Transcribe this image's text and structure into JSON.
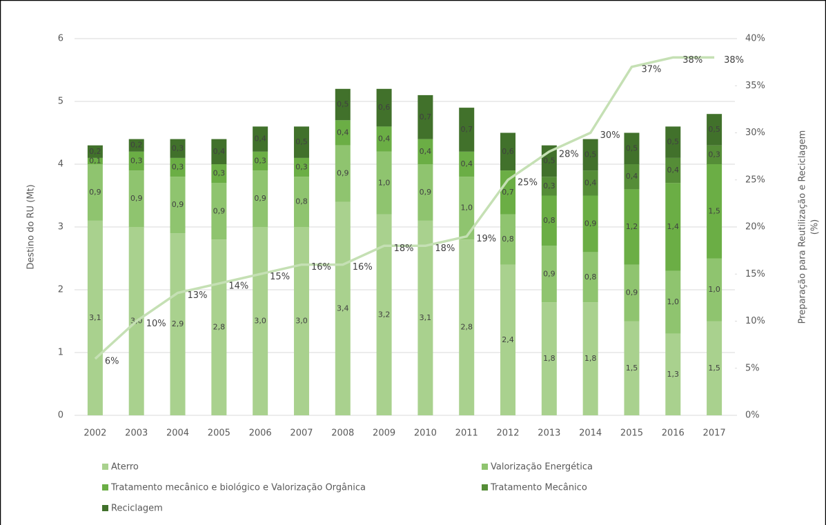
{
  "chart_data": {
    "type": "bar",
    "categories": [
      "2002",
      "2003",
      "2004",
      "2005",
      "2006",
      "2007",
      "2008",
      "2009",
      "2010",
      "2011",
      "2012",
      "2013",
      "2014",
      "2015",
      "2016",
      "2017"
    ],
    "series": [
      {
        "name": "Aterro",
        "color": "#a9d18e",
        "values": [
          3.1,
          3.0,
          2.9,
          2.8,
          3.0,
          3.0,
          3.4,
          3.2,
          3.1,
          2.8,
          2.4,
          1.8,
          1.8,
          1.5,
          1.3,
          1.5
        ],
        "value_labels": [
          "3,1",
          "3,0",
          "2,9",
          "2,8",
          "3,0",
          "3,0",
          "3,4",
          "3,2",
          "3,1",
          "2,8",
          "2,4",
          "1,8",
          "1,8",
          "1,5",
          "1,3",
          "1,5"
        ]
      },
      {
        "name": "Valorização Energética",
        "color": "#8fc46f",
        "values": [
          0.9,
          0.9,
          0.9,
          0.9,
          0.9,
          0.8,
          0.9,
          1.0,
          0.9,
          1.0,
          0.8,
          0.9,
          0.8,
          0.9,
          1.0,
          1.0
        ],
        "value_labels": [
          "0,9",
          "0,9",
          "0,9",
          "0,9",
          "0,9",
          "0,8",
          "0,9",
          "1,0",
          "0,9",
          "1,0",
          "0,8",
          "0,9",
          "0,8",
          "0,9",
          "1,0",
          "1,0"
        ]
      },
      {
        "name": "Tratamento mecânico e biológico e Valorização Orgânica",
        "color": "#6bae45",
        "values": [
          0.1,
          0.3,
          0.3,
          0.3,
          0.3,
          0.3,
          0.4,
          0.4,
          0.4,
          0.4,
          0.7,
          0.8,
          0.9,
          1.2,
          1.4,
          1.5
        ],
        "value_labels": [
          "0,1",
          "0,3",
          "0,3",
          "0,3",
          "0,3",
          "0,3",
          "0,4",
          "0,4",
          "0,4",
          "0,4",
          "0,7",
          "0,8",
          "0,9",
          "1,2",
          "1,4",
          "1,5"
        ]
      },
      {
        "name": "Tratamento Mecânico",
        "color": "#558d37",
        "values": [
          null,
          null,
          null,
          null,
          null,
          null,
          null,
          null,
          null,
          null,
          null,
          0.3,
          0.4,
          0.4,
          0.4,
          0.3
        ],
        "value_labels": [
          null,
          null,
          null,
          null,
          null,
          null,
          null,
          null,
          null,
          null,
          null,
          "0,3",
          "0,4",
          "0,4",
          "0,4",
          "0,3"
        ]
      },
      {
        "name": "Reciclagem",
        "color": "#41712b",
        "values": [
          0.2,
          0.2,
          0.3,
          0.4,
          0.4,
          0.5,
          0.5,
          0.6,
          0.7,
          0.7,
          0.6,
          0.5,
          0.5,
          0.5,
          0.5,
          0.5
        ],
        "value_labels": [
          "0,2",
          "0,2",
          "0,3",
          "0,4",
          "0,4",
          "0,5",
          "0,5",
          "0,6",
          "0,7",
          "0,7",
          "0,6",
          "0,5",
          "0,5",
          "0,5",
          "0,5",
          "0,5"
        ]
      }
    ],
    "line": {
      "axis": "y2",
      "color": "#c5e0b4",
      "values": [
        6,
        10,
        13,
        14,
        15,
        16,
        16,
        18,
        18,
        19,
        25,
        28,
        30,
        37,
        38,
        38
      ],
      "value_labels": [
        "6%",
        "10%",
        "13%",
        "14%",
        "15%",
        "16%",
        "16%",
        "18%",
        "18%",
        "19%",
        "25%",
        "28%",
        "30%",
        "37%",
        "38%",
        "38%"
      ]
    },
    "ylabel": "Destino do RU (Mt)",
    "y2label": [
      "Preparação para Reutilização e Reciclagem",
      "(%)"
    ],
    "ylim": [
      0,
      6
    ],
    "yticks": [
      0,
      1,
      2,
      3,
      4,
      5,
      6
    ],
    "y2lim": [
      0,
      40
    ],
    "y2ticks": [
      {
        "value": 0,
        "label": "0%"
      },
      {
        "value": 5,
        "label": "5%"
      },
      {
        "value": 10,
        "label": "10%"
      },
      {
        "value": 15,
        "label": "15%"
      },
      {
        "value": 20,
        "label": "20%"
      },
      {
        "value": 25,
        "label": "25%"
      },
      {
        "value": 30,
        "label": "30%"
      },
      {
        "value": 35,
        "label": "35%"
      },
      {
        "value": 40,
        "label": "40%"
      }
    ],
    "grid": true,
    "legend": "bottom"
  }
}
